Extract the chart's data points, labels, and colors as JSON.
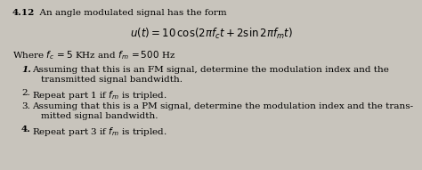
{
  "background_color": "#c8c4bc",
  "title_num": "4.12",
  "title_rest": "  An angle modulated signal has the form",
  "equation": "$u(t) = 10\\,\\cos(2\\pi f_c t + 2\\sin 2\\pi f_m t)$",
  "where_line": "Where $f_c\\, = 5$ KHz and $f_m\\, = 500$ Hz",
  "item1_num": "1.",
  "item1_text": "Assuming that this is an FM signal, determine the modulation index and the",
  "item1_cont": "transmitted signal bandwidth.",
  "item2_num": "2.",
  "item2_text": "Repeat part 1 if $f_m$ is tripled.",
  "item3_num": "3.",
  "item3_text": "Assuming that this is a PM signal, determine the modulation index and the trans-",
  "item3_cont": "mitted signal bandwidth.",
  "item4_num": "4.",
  "item4_text": "Repeat part 3 if $f_m$ is tripled.",
  "fontsize": 7.5,
  "eq_fontsize": 8.5
}
